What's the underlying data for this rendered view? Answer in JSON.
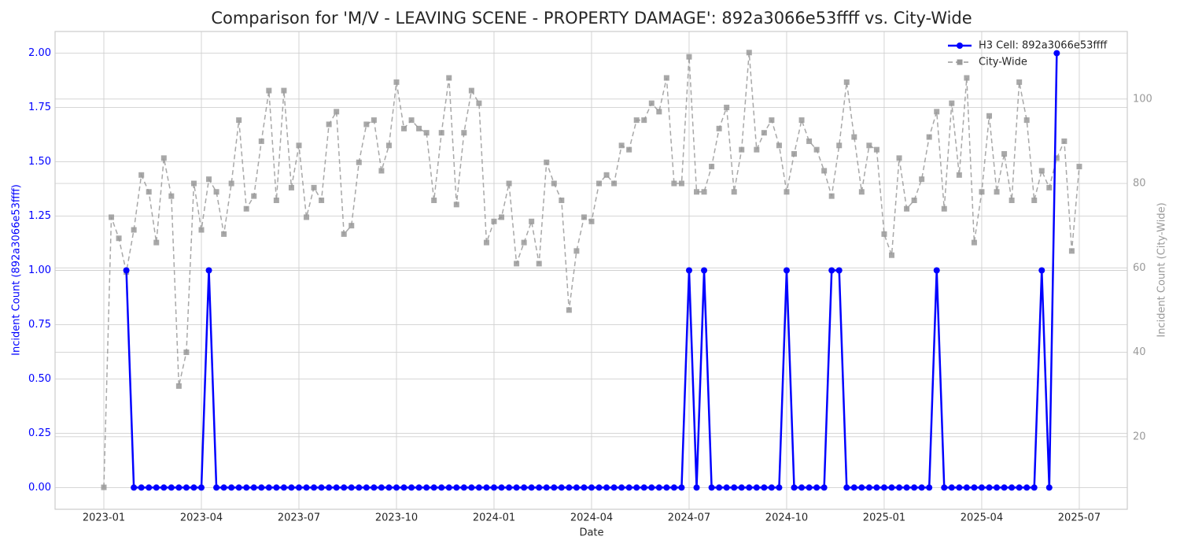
{
  "chart_data": {
    "type": "line",
    "title": "Comparison for 'M/V - LEAVING SCENE - PROPERTY DAMAGE': 892a3066e53ffff vs. City-Wide",
    "xlabel": "Date",
    "ylabel": "Incident Count (892a3066e53ffff)",
    "y2label": "Incident Count (City-Wide)",
    "categories": [
      null,
      null,
      null,
      null,
      null,
      null,
      null,
      null,
      null,
      null,
      null,
      null,
      null,
      null,
      null,
      null,
      null,
      null,
      null,
      null,
      null,
      null,
      null,
      null,
      null,
      null,
      null,
      null,
      null,
      null,
      null,
      null,
      null,
      null,
      null,
      null,
      null,
      null,
      null,
      null,
      null,
      null,
      null,
      null,
      null,
      null,
      null,
      null,
      null,
      null,
      null,
      null,
      null,
      null,
      null,
      null,
      null,
      null,
      null,
      null,
      null,
      null,
      null,
      null,
      null,
      null,
      null,
      null,
      null,
      null,
      null,
      null,
      null,
      null,
      null,
      null,
      null,
      null,
      null,
      null,
      null,
      null,
      null,
      null,
      null,
      null,
      null,
      null,
      null,
      null,
      null,
      null,
      null,
      null,
      null,
      null,
      null,
      null,
      null,
      null,
      null,
      null,
      null,
      null,
      null,
      null,
      null,
      null,
      null,
      null,
      null,
      null,
      null,
      null,
      null,
      null,
      null,
      null,
      null,
      null,
      null,
      null,
      null,
      null,
      null,
      null,
      null,
      null,
      null,
      null,
      null
    ],
    "xlim": [
      -6.5,
      136.4
    ],
    "xticks": [
      {
        "value": 0,
        "label": "2023-01"
      },
      {
        "value": 13,
        "label": "2023-04"
      },
      {
        "value": 26,
        "label": "2023-07"
      },
      {
        "value": 39,
        "label": "2023-10"
      },
      {
        "value": 52,
        "label": "2024-01"
      },
      {
        "value": 65,
        "label": "2024-04"
      },
      {
        "value": 78,
        "label": "2024-07"
      },
      {
        "value": 91,
        "label": "2024-10"
      },
      {
        "value": 104,
        "label": "2025-01"
      },
      {
        "value": 117,
        "label": "2025-04"
      },
      {
        "value": 130,
        "label": "2025-07"
      }
    ],
    "ylim": [
      -0.1,
      2.1
    ],
    "yticks": [
      {
        "value": 0,
        "label": "0.00"
      },
      {
        "value": 0.25,
        "label": "0.25"
      },
      {
        "value": 0.5,
        "label": "0.50"
      },
      {
        "value": 0.75,
        "label": "0.75"
      },
      {
        "value": 1,
        "label": "1.00"
      },
      {
        "value": 1.25,
        "label": "1.25"
      },
      {
        "value": 1.5,
        "label": "1.50"
      },
      {
        "value": 1.75,
        "label": "1.75"
      },
      {
        "value": 2,
        "label": "2.00"
      }
    ],
    "y2lim": [
      2.8,
      116
    ],
    "y2ticks": [
      20,
      40,
      60,
      80,
      100
    ],
    "grid": true,
    "legend": "upper right",
    "series": [
      {
        "name": "H3 Cell: 892a3066e53ffff",
        "color": "#0000ff",
        "marker": "circle",
        "linestyle": "solid",
        "axis": "y",
        "values": [
          null,
          null,
          null,
          1,
          0,
          0,
          0,
          0,
          0,
          0,
          0,
          0,
          0,
          0,
          1,
          0,
          0,
          0,
          0,
          0,
          0,
          0,
          0,
          0,
          0,
          0,
          0,
          0,
          0,
          0,
          0,
          0,
          0,
          0,
          0,
          0,
          0,
          0,
          0,
          0,
          0,
          0,
          0,
          0,
          0,
          0,
          0,
          0,
          0,
          0,
          0,
          0,
          0,
          0,
          0,
          0,
          0,
          0,
          0,
          0,
          0,
          0,
          0,
          0,
          0,
          0,
          0,
          0,
          0,
          0,
          0,
          0,
          0,
          0,
          0,
          0,
          0,
          0,
          1,
          0,
          1,
          0,
          0,
          0,
          0,
          0,
          0,
          0,
          0,
          0,
          0,
          1,
          0,
          0,
          0,
          0,
          0,
          1,
          1,
          0,
          0,
          0,
          0,
          0,
          0,
          0,
          0,
          0,
          0,
          0,
          0,
          1,
          0,
          0,
          0,
          0,
          0,
          0,
          0,
          0,
          0,
          0,
          0,
          0,
          0,
          1,
          0,
          2,
          null,
          null,
          null
        ]
      },
      {
        "name": "City-Wide",
        "color": "#999999",
        "marker": "square",
        "linestyle": "dashed",
        "axis": "y2",
        "values": [
          8,
          72,
          67,
          59,
          69,
          82,
          78,
          66,
          86,
          77,
          32,
          40,
          80,
          69,
          81,
          78,
          68,
          80,
          95,
          74,
          77,
          90,
          102,
          76,
          102,
          79,
          89,
          72,
          79,
          76,
          94,
          97,
          68,
          70,
          85,
          94,
          95,
          83,
          89,
          104,
          93,
          95,
          93,
          92,
          76,
          92,
          105,
          75,
          92,
          102,
          99,
          66,
          71,
          72,
          80,
          61,
          66,
          71,
          61,
          85,
          80,
          76,
          50,
          64,
          72,
          71,
          80,
          82,
          80,
          89,
          88,
          95,
          95,
          99,
          97,
          105,
          80,
          80,
          110,
          78,
          78,
          84,
          93,
          98,
          78,
          88,
          111,
          88,
          92,
          95,
          89,
          78,
          87,
          95,
          90,
          88,
          83,
          77,
          89,
          104,
          91,
          78,
          89,
          88,
          68,
          63,
          86,
          74,
          76,
          81,
          91,
          97,
          74,
          99,
          82,
          105,
          66,
          78,
          96,
          78,
          87,
          76,
          104,
          95,
          76,
          83,
          79,
          86,
          90,
          64,
          84
        ]
      }
    ]
  }
}
